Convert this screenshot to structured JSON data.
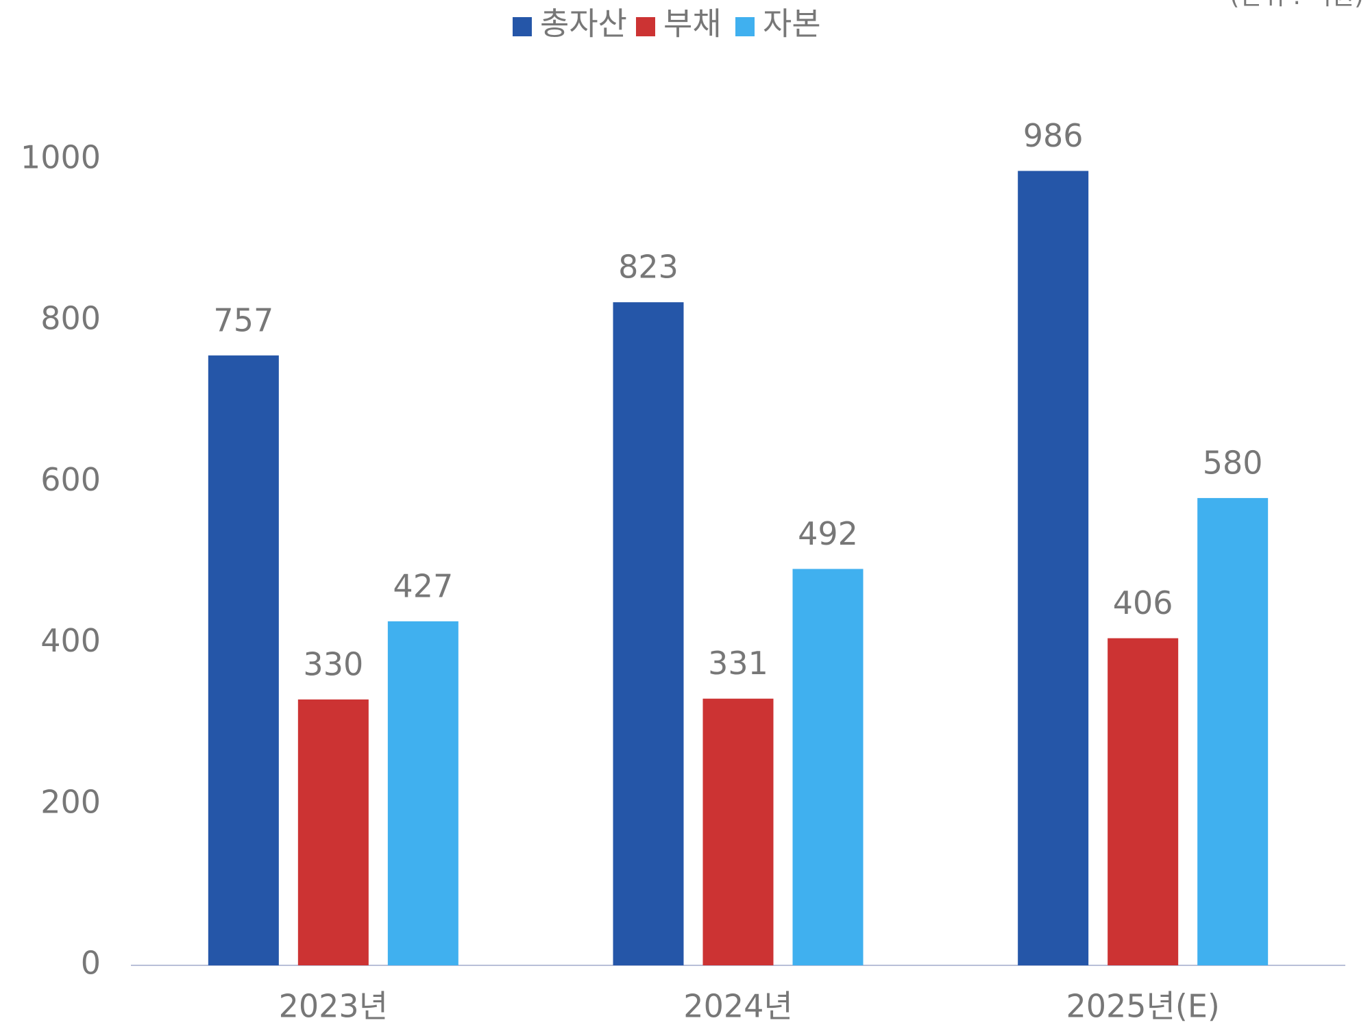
{
  "chart_data": {
    "type": "bar",
    "unit_note": "(단위 : 억원)",
    "categories": [
      "2023년",
      "2024년",
      "2025년(E)"
    ],
    "series": [
      {
        "name": "총자산",
        "color": "#2556a8",
        "values": [
          757,
          823,
          986
        ]
      },
      {
        "name": "부채",
        "color": "#cc3333",
        "values": [
          330,
          331,
          406
        ]
      },
      {
        "name": "자본",
        "color": "#40b0ef",
        "values": [
          427,
          492,
          580
        ]
      }
    ],
    "ylim": [
      0,
      1000
    ],
    "yticks": [
      0,
      200,
      400,
      600,
      800,
      1000
    ],
    "grid": false,
    "legend": "top"
  }
}
